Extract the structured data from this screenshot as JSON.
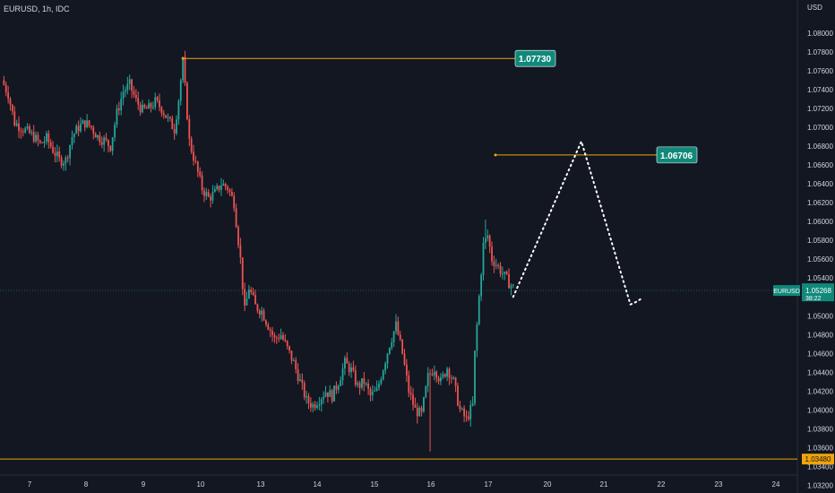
{
  "header": {
    "symbol_label": "EURUSD, 1h, IDC"
  },
  "colors": {
    "background": "#131722",
    "up": "#26a69a",
    "down": "#ef5350",
    "level": "#f0a30a",
    "label_green": "#10897b",
    "axis_text": "#d1d4dc"
  },
  "chart_data": {
    "type": "candlestick",
    "instrument": "EURUSD",
    "timeframe": "1h",
    "y_axis_unit": "USD",
    "ylim": [
      1.0312,
      1.0835
    ],
    "y_ticks": [
      "1.08000",
      "1.07800",
      "1.07600",
      "1.07400",
      "1.07200",
      "1.07000",
      "1.06800",
      "1.06600",
      "1.06400",
      "1.06200",
      "1.06000",
      "1.05800",
      "1.05600",
      "1.05400",
      "1.05200",
      "1.05000",
      "1.04800",
      "1.04600",
      "1.04400",
      "1.04200",
      "1.04000",
      "1.03800",
      "1.03600",
      "1.03400",
      "1.03200"
    ],
    "x_ticks": [
      "7",
      "8",
      "9",
      "10",
      "13",
      "14",
      "15",
      "16",
      "17",
      "20",
      "21",
      "22",
      "23",
      "24"
    ],
    "close_path": [
      [
        0,
        1.075
      ],
      [
        3,
        1.0735
      ],
      [
        6,
        1.0705
      ],
      [
        9,
        1.07
      ],
      [
        12,
        1.0695
      ],
      [
        15,
        1.069
      ],
      [
        18,
        1.0682
      ],
      [
        21,
        1.0688
      ],
      [
        24,
        1.0676
      ],
      [
        27,
        1.0665
      ],
      [
        30,
        1.0665
      ],
      [
        33,
        1.069
      ],
      [
        36,
        1.07
      ],
      [
        39,
        1.0705
      ],
      [
        42,
        1.07
      ],
      [
        45,
        1.069
      ],
      [
        48,
        1.0686
      ],
      [
        51,
        1.068
      ],
      [
        54,
        1.0715
      ],
      [
        57,
        1.0738
      ],
      [
        60,
        1.0745
      ],
      [
        63,
        1.0728
      ],
      [
        66,
        1.0718
      ],
      [
        69,
        1.072
      ],
      [
        72,
        1.0727
      ],
      [
        75,
        1.072
      ],
      [
        78,
        1.0708
      ],
      [
        81,
        1.0698
      ],
      [
        83,
        1.073
      ],
      [
        85,
        1.077
      ],
      [
        88,
        1.0685
      ],
      [
        91,
        1.066
      ],
      [
        94,
        1.0635
      ],
      [
        97,
        1.0625
      ],
      [
        100,
        1.063
      ],
      [
        103,
        1.064
      ],
      [
        106,
        1.0636
      ],
      [
        109,
        1.062
      ],
      [
        112,
        1.056
      ],
      [
        114,
        1.0505
      ],
      [
        116,
        1.053
      ],
      [
        119,
        1.051
      ],
      [
        122,
        1.0505
      ],
      [
        125,
        1.049
      ],
      [
        128,
        1.0475
      ],
      [
        131,
        1.048
      ],
      [
        134,
        1.0465
      ],
      [
        137,
        1.045
      ],
      [
        140,
        1.043
      ],
      [
        143,
        1.041
      ],
      [
        146,
        1.0405
      ],
      [
        149,
        1.0412
      ],
      [
        152,
        1.042
      ],
      [
        155,
        1.0415
      ],
      [
        158,
        1.043
      ],
      [
        161,
        1.045
      ],
      [
        164,
        1.0442
      ],
      [
        167,
        1.0425
      ],
      [
        170,
        1.043
      ],
      [
        173,
        1.0415
      ],
      [
        176,
        1.042
      ],
      [
        179,
        1.0445
      ],
      [
        182,
        1.047
      ],
      [
        185,
        1.049
      ],
      [
        188,
        1.046
      ],
      [
        191,
        1.042
      ],
      [
        194,
        1.04
      ],
      [
        197,
        1.0395
      ],
      [
        200,
        1.0435
      ],
      [
        203,
        1.0445
      ],
      [
        206,
        1.043
      ],
      [
        209,
        1.0445
      ],
      [
        212,
        1.043
      ],
      [
        215,
        1.04
      ],
      [
        218,
        1.039
      ],
      [
        221,
        1.0405
      ],
      [
        222,
        1.046
      ],
      [
        224,
        1.052
      ],
      [
        226,
        1.0575
      ],
      [
        228,
        1.0585
      ],
      [
        230,
        1.056
      ],
      [
        232,
        1.0555
      ],
      [
        235,
        1.0545
      ],
      [
        238,
        1.0535
      ],
      [
        240,
        1.053
      ]
    ],
    "wick_extremes": [
      {
        "x": 85,
        "high": 1.0773
      },
      {
        "x": 201,
        "low": 1.0356
      },
      {
        "x": 227,
        "high": 1.0602
      }
    ],
    "forecast_path": [
      [
        240,
        1.052
      ],
      [
        272,
        1.0685
      ],
      [
        295,
        1.0512
      ],
      [
        298,
        1.0515
      ],
      [
        300,
        1.0518
      ]
    ],
    "levels": [
      {
        "value": 1.0773,
        "label": "1.07730",
        "from_x": 85
      },
      {
        "value": 1.06706,
        "label": "1.06706",
        "from_x": 236
      },
      {
        "value": 1.0348,
        "label": "1.03480",
        "from_x": 0
      }
    ],
    "current_price": {
      "symbol": "EURUSD",
      "value": "1.05268",
      "countdown": "38:22",
      "level": 1.05268
    },
    "x_domain": [
      0,
      370
    ]
  }
}
